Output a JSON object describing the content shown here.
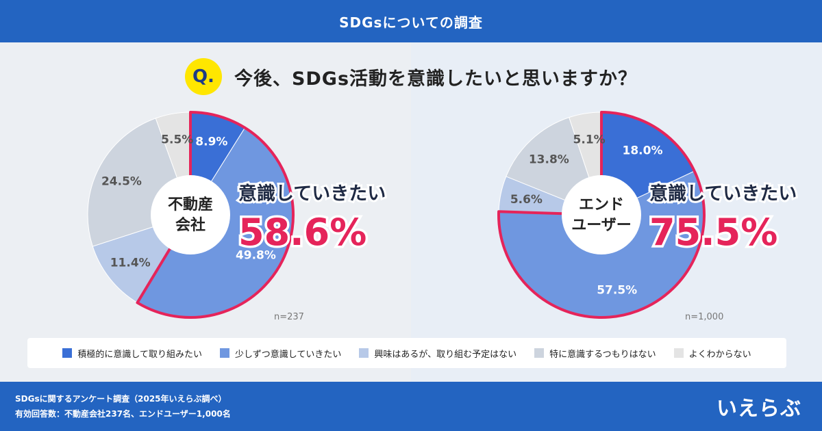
{
  "header": {
    "title": "SDGsについての調査"
  },
  "question": {
    "badge": "Q.",
    "text": "今後、SDGs活動を意識したいと思いますか？"
  },
  "colors": {
    "s1": "#3a6fd6",
    "s2": "#6f97e0",
    "s3": "#b7c9e8",
    "s4": "#cdd4de",
    "s5": "#e4e4e4",
    "highlight": "#e5245a"
  },
  "chart_data": [
    {
      "type": "pie",
      "center_label": "不動産会社",
      "center_lines": [
        "不動産",
        "会社"
      ],
      "n_label": "n=237",
      "highlight_label": "意識していきたい",
      "highlight_value": "58.6%",
      "categories": [
        "積極的に意識して取り組みたい",
        "少しずつ意識していきたい",
        "興味はあるが、取り組む予定はない",
        "特に意識するつもりはない",
        "よくわからない"
      ],
      "values": [
        8.9,
        49.8,
        11.4,
        24.5,
        5.5
      ]
    },
    {
      "type": "pie",
      "center_label": "エンドユーザー",
      "center_lines": [
        "エンド",
        "ユーザー"
      ],
      "n_label": "n=1,000",
      "highlight_label": "意識していきたい",
      "highlight_value": "75.5%",
      "categories": [
        "積極的に意識して取り組みたい",
        "少しずつ意識していきたい",
        "興味はあるが、取り組む予定はない",
        "特に意識するつもりはない",
        "よくわからない"
      ],
      "values": [
        18.0,
        57.5,
        5.6,
        13.8,
        5.1
      ]
    }
  ],
  "legend": [
    "積極的に意識して取り組みたい",
    "少しずつ意識していきたい",
    "興味はあるが、取り組む予定はない",
    "特に意識するつもりはない",
    "よくわからない"
  ],
  "footer": {
    "line1": "SDGsに関するアンケート調査（2025年いえらぶ調べ）",
    "line2": "有効回答数：不動産会社237名、エンドユーザー1,000名",
    "logo": "いえらぶ"
  }
}
